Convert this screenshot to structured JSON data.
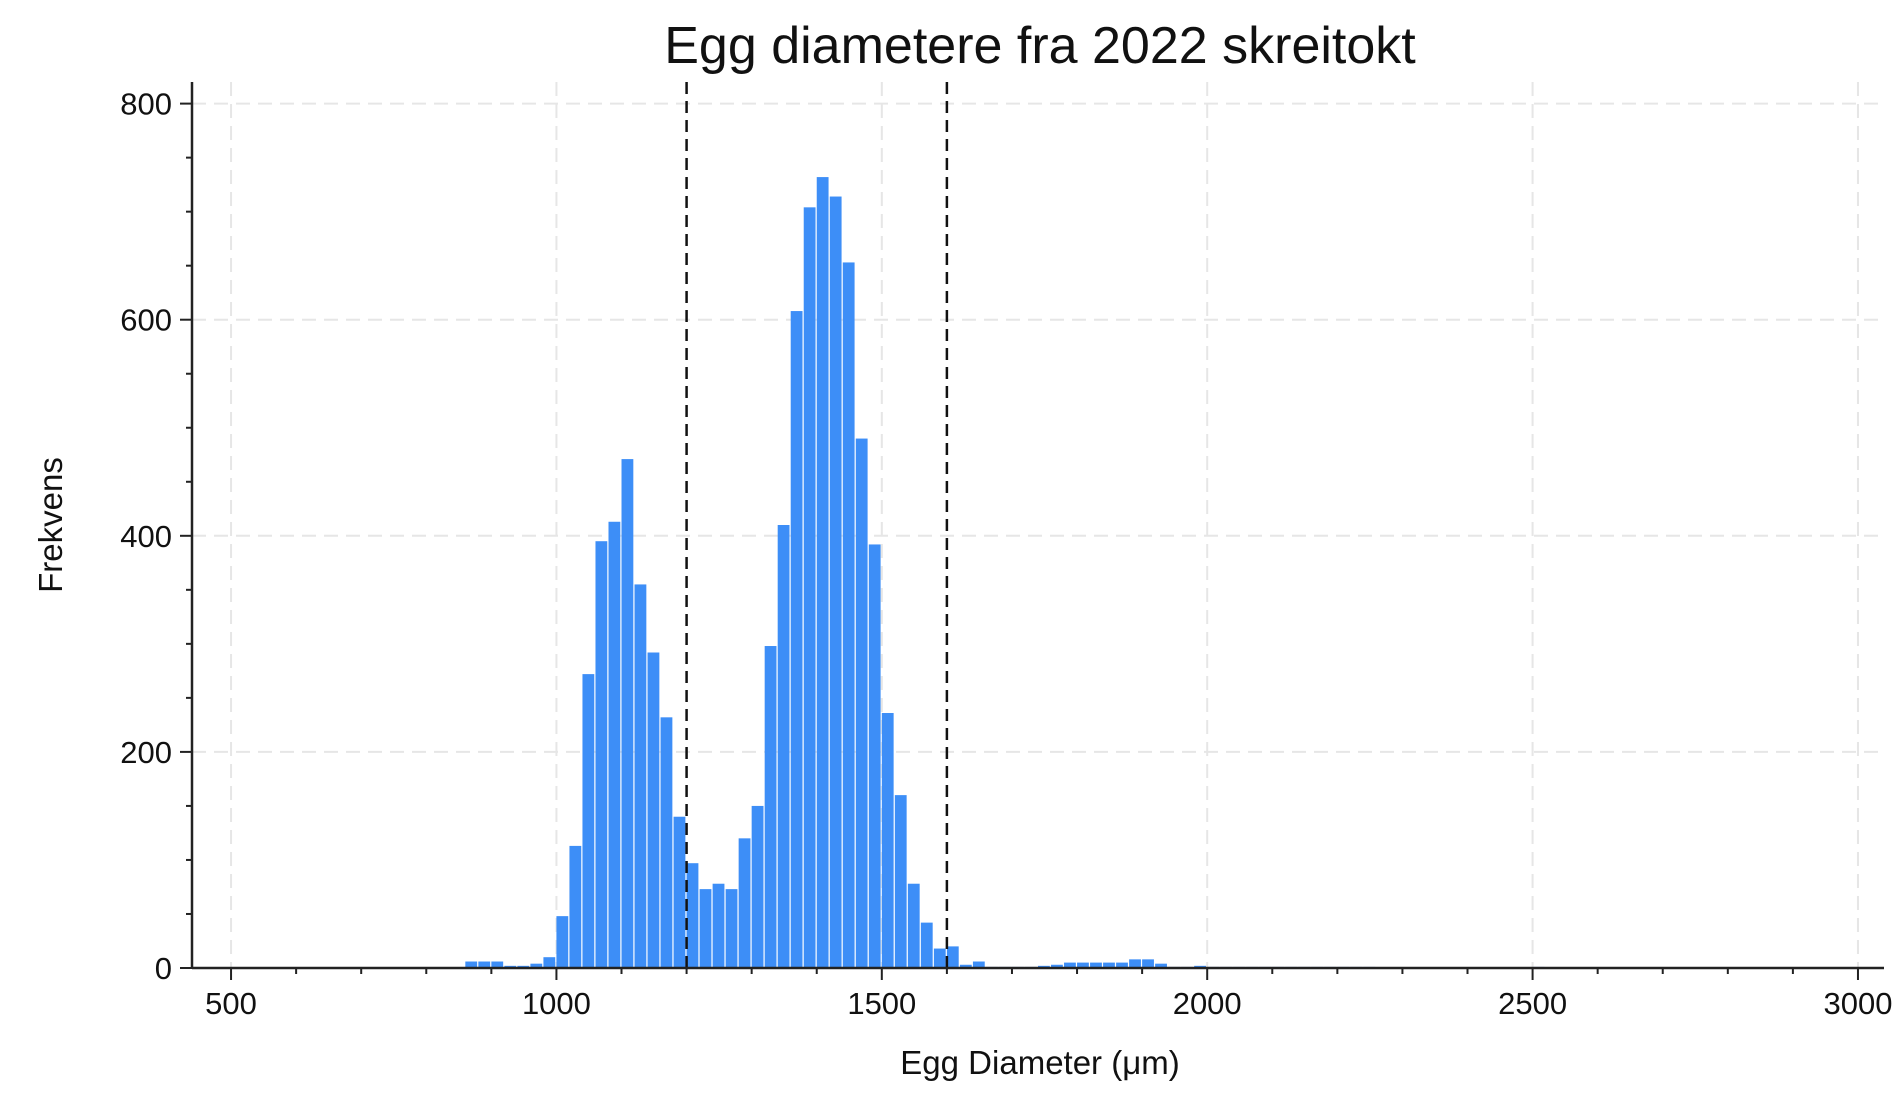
{
  "chart_data": {
    "type": "bar",
    "title": "Egg diametere fra 2022 skreitokt",
    "xlabel": "Egg Diameter (μm)",
    "ylabel": "Frekvens",
    "xlim": [
      440,
      3040
    ],
    "ylim": [
      0,
      820
    ],
    "xticks": [
      500,
      1000,
      1500,
      2000,
      2500,
      3000
    ],
    "yticks": [
      0,
      200,
      400,
      600,
      800
    ],
    "xtick_labels": [
      "500",
      "1000",
      "1500",
      "2000",
      "2500",
      "3000"
    ],
    "ytick_labels": [
      "0",
      "200",
      "400",
      "600",
      "800"
    ],
    "bin_width": 20,
    "grid": true,
    "bar_color": "#3d8ef7",
    "reference_lines": [
      1200,
      1600
    ],
    "bins": [
      {
        "x": 860,
        "y": 6
      },
      {
        "x": 880,
        "y": 6
      },
      {
        "x": 900,
        "y": 6
      },
      {
        "x": 920,
        "y": 2
      },
      {
        "x": 940,
        "y": 2
      },
      {
        "x": 960,
        "y": 4
      },
      {
        "x": 980,
        "y": 10
      },
      {
        "x": 1000,
        "y": 48
      },
      {
        "x": 1020,
        "y": 113
      },
      {
        "x": 1040,
        "y": 272
      },
      {
        "x": 1060,
        "y": 395
      },
      {
        "x": 1080,
        "y": 413
      },
      {
        "x": 1100,
        "y": 471
      },
      {
        "x": 1120,
        "y": 355
      },
      {
        "x": 1140,
        "y": 292
      },
      {
        "x": 1160,
        "y": 232
      },
      {
        "x": 1180,
        "y": 140
      },
      {
        "x": 1200,
        "y": 97
      },
      {
        "x": 1220,
        "y": 73
      },
      {
        "x": 1240,
        "y": 78
      },
      {
        "x": 1260,
        "y": 73
      },
      {
        "x": 1280,
        "y": 120
      },
      {
        "x": 1300,
        "y": 150
      },
      {
        "x": 1320,
        "y": 298
      },
      {
        "x": 1340,
        "y": 410
      },
      {
        "x": 1360,
        "y": 608
      },
      {
        "x": 1380,
        "y": 704
      },
      {
        "x": 1400,
        "y": 732
      },
      {
        "x": 1420,
        "y": 714
      },
      {
        "x": 1440,
        "y": 653
      },
      {
        "x": 1460,
        "y": 490
      },
      {
        "x": 1480,
        "y": 392
      },
      {
        "x": 1500,
        "y": 236
      },
      {
        "x": 1520,
        "y": 160
      },
      {
        "x": 1540,
        "y": 78
      },
      {
        "x": 1560,
        "y": 42
      },
      {
        "x": 1580,
        "y": 18
      },
      {
        "x": 1600,
        "y": 20
      },
      {
        "x": 1620,
        "y": 3
      },
      {
        "x": 1640,
        "y": 6
      },
      {
        "x": 1660,
        "y": 1
      },
      {
        "x": 1680,
        "y": 1
      },
      {
        "x": 1700,
        "y": 1
      },
      {
        "x": 1720,
        "y": 1
      },
      {
        "x": 1740,
        "y": 2
      },
      {
        "x": 1760,
        "y": 3
      },
      {
        "x": 1780,
        "y": 5
      },
      {
        "x": 1800,
        "y": 5
      },
      {
        "x": 1820,
        "y": 5
      },
      {
        "x": 1840,
        "y": 5
      },
      {
        "x": 1860,
        "y": 5
      },
      {
        "x": 1880,
        "y": 8
      },
      {
        "x": 1900,
        "y": 8
      },
      {
        "x": 1920,
        "y": 4
      },
      {
        "x": 1940,
        "y": 1
      },
      {
        "x": 1960,
        "y": 1
      },
      {
        "x": 1980,
        "y": 2
      },
      {
        "x": 2000,
        "y": 1
      },
      {
        "x": 2020,
        "y": 1
      },
      {
        "x": 2040,
        "y": 1
      },
      {
        "x": 2060,
        "y": 1
      },
      {
        "x": 2080,
        "y": 1
      },
      {
        "x": 2100,
        "y": 1
      },
      {
        "x": 2120,
        "y": 1
      },
      {
        "x": 2140,
        "y": 1
      },
      {
        "x": 2160,
        "y": 1
      },
      {
        "x": 2180,
        "y": 1
      },
      {
        "x": 2200,
        "y": 1
      },
      {
        "x": 2220,
        "y": 1
      },
      {
        "x": 2240,
        "y": 1
      },
      {
        "x": 2500,
        "y": 1
      }
    ]
  }
}
